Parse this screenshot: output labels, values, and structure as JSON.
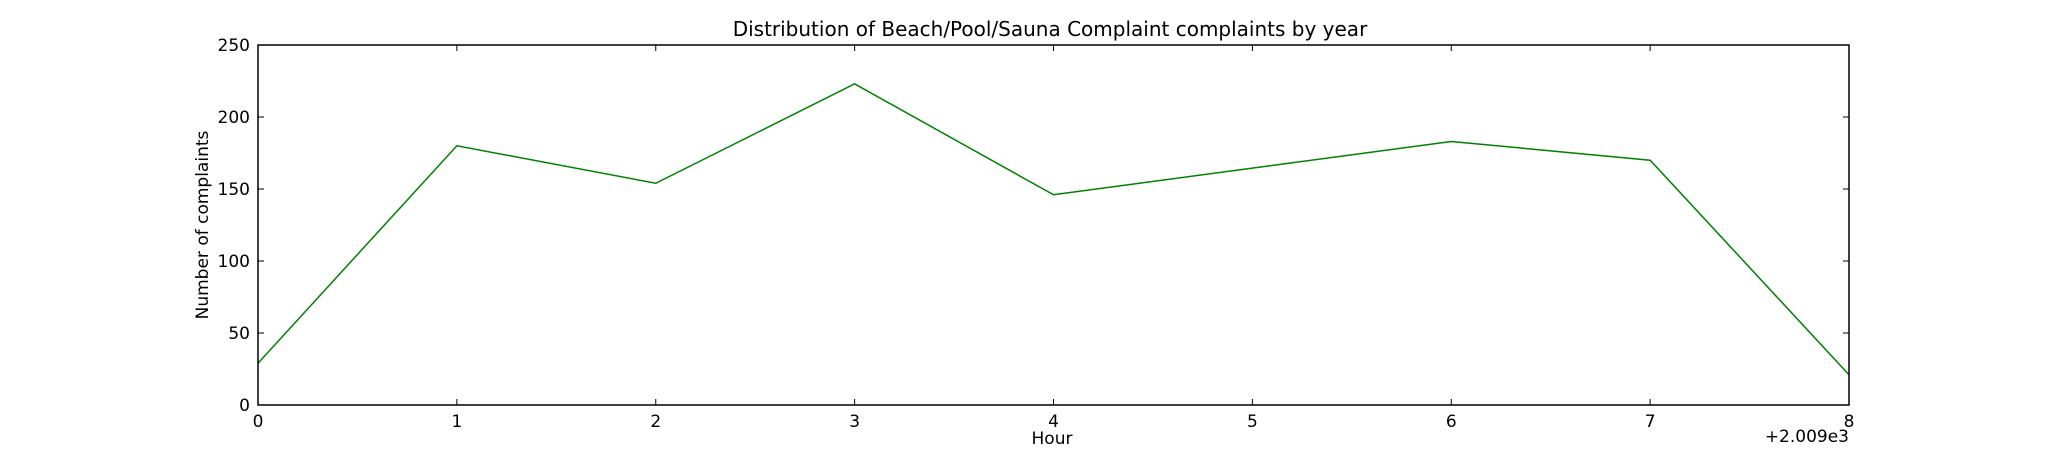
{
  "chart_data": {
    "type": "line",
    "title": "Distribution of  Beach/Pool/Sauna Complaint complaints by year",
    "xlabel": "Hour",
    "ylabel": "Number of complaints",
    "x_offset_label": "+2.009e3",
    "xlim": [
      0,
      8
    ],
    "ylim": [
      0,
      250
    ],
    "xticks": [
      "0",
      "1",
      "2",
      "3",
      "4",
      "5",
      "6",
      "7",
      "8"
    ],
    "yticks": [
      "0",
      "50",
      "100",
      "150",
      "200",
      "250"
    ],
    "grid": false,
    "legend": "none",
    "series": [
      {
        "color": "#008000",
        "x": [
          0,
          1,
          2,
          3,
          4,
          6,
          7,
          8
        ],
        "y": [
          29,
          180,
          154,
          223,
          146,
          183,
          170,
          21
        ]
      }
    ]
  }
}
